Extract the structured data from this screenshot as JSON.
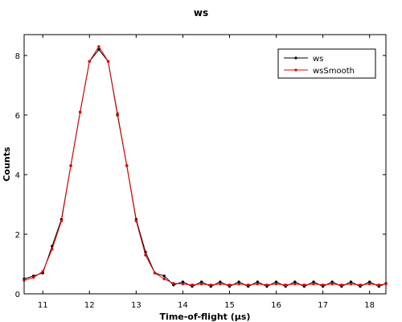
{
  "chart_data": {
    "type": "line",
    "title": "ws",
    "xlabel": "Time-of-flight (µs)",
    "ylabel": "Counts",
    "xlim": [
      10.6,
      18.35
    ],
    "ylim": [
      0,
      8.7
    ],
    "xticks": [
      "11",
      "12",
      "13",
      "14",
      "15",
      "16",
      "17",
      "18"
    ],
    "yticks": [
      "0",
      "2",
      "4",
      "6",
      "8"
    ],
    "grid": false,
    "legend_position": "top-right",
    "series": [
      {
        "name": "ws",
        "color": "#000000",
        "x": [
          10.6,
          10.8,
          11.0,
          11.2,
          11.4,
          11.6,
          11.8,
          12.0,
          12.2,
          12.4,
          12.6,
          12.8,
          13.0,
          13.2,
          13.4,
          13.6,
          13.8,
          14.0,
          14.2,
          14.4,
          14.6,
          14.8,
          15.0,
          15.2,
          15.4,
          15.6,
          15.8,
          16.0,
          16.2,
          16.4,
          16.6,
          16.8,
          17.0,
          17.2,
          17.4,
          17.6,
          17.8,
          18.0,
          18.2,
          18.35
        ],
        "values": [
          0.5,
          0.6,
          0.7,
          1.6,
          2.5,
          4.3,
          6.1,
          7.8,
          8.2,
          7.8,
          6.0,
          4.3,
          2.5,
          1.4,
          0.7,
          0.6,
          0.3,
          0.4,
          0.25,
          0.4,
          0.25,
          0.4,
          0.25,
          0.4,
          0.25,
          0.4,
          0.25,
          0.4,
          0.25,
          0.4,
          0.25,
          0.4,
          0.25,
          0.4,
          0.25,
          0.4,
          0.25,
          0.4,
          0.25,
          0.35
        ]
      },
      {
        "name": "wsSmooth",
        "color": "#e00000",
        "x": [
          10.6,
          10.8,
          11.0,
          11.2,
          11.4,
          11.6,
          11.8,
          12.0,
          12.2,
          12.4,
          12.6,
          12.8,
          13.0,
          13.2,
          13.4,
          13.6,
          13.8,
          14.0,
          14.2,
          14.4,
          14.6,
          14.8,
          15.0,
          15.2,
          15.4,
          15.6,
          15.8,
          16.0,
          16.2,
          16.4,
          16.6,
          16.8,
          17.0,
          17.2,
          17.4,
          17.6,
          17.8,
          18.0,
          18.2,
          18.35
        ],
        "values": [
          0.45,
          0.55,
          0.75,
          1.5,
          2.45,
          4.3,
          6.1,
          7.8,
          8.3,
          7.8,
          6.05,
          4.3,
          2.45,
          1.3,
          0.7,
          0.5,
          0.35,
          0.33,
          0.3,
          0.33,
          0.3,
          0.33,
          0.3,
          0.33,
          0.3,
          0.33,
          0.3,
          0.33,
          0.3,
          0.33,
          0.3,
          0.33,
          0.3,
          0.33,
          0.3,
          0.33,
          0.3,
          0.33,
          0.3,
          0.33
        ]
      }
    ]
  }
}
